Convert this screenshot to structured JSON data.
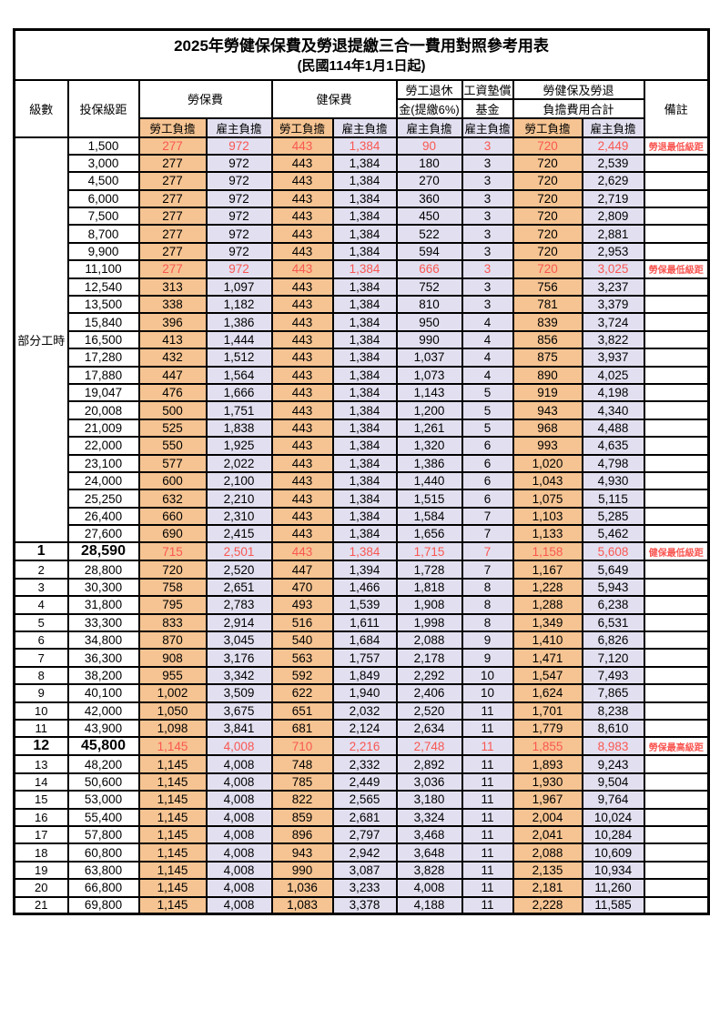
{
  "title": "2025年勞健保保費及勞退提繳三合一費用對照參考用表",
  "subtitle": "(民國114年1月1日起)",
  "header": {
    "level": "級數",
    "bracket": "投保級距",
    "labor_ins": "勞保費",
    "health_ins": "健保費",
    "pension_line1": "勞工退休",
    "pension_line2": "金(提繳6%)",
    "wage_fund_line1": "工資墊償",
    "wage_fund_line2": "基金",
    "total_line1": "勞健保及勞退",
    "total_line2": "負擔費用合計",
    "note": "備註",
    "employee": "勞工負擔",
    "employer": "雇主負擔"
  },
  "part_time_label": "部分工時",
  "colors": {
    "employee_bg": "#F6C492",
    "employer_bg": "#E2E0F0",
    "highlight_text": "#F95752",
    "border": "#000000"
  },
  "value_column_names": [
    "labor-employee",
    "labor-employer",
    "health-employee",
    "health-employer",
    "pension-employer",
    "wage-fund-employer",
    "total-employee",
    "total-employer"
  ],
  "rows": [
    {
      "level": "",
      "bracket": "1,500",
      "values": [
        "277",
        "972",
        "443",
        "1,384",
        "90",
        "3",
        "720",
        "2,449"
      ],
      "note": "勞退最低級距",
      "red": true,
      "big": false
    },
    {
      "level": "",
      "bracket": "3,000",
      "values": [
        "277",
        "972",
        "443",
        "1,384",
        "180",
        "3",
        "720",
        "2,539"
      ],
      "note": "",
      "red": false,
      "big": false
    },
    {
      "level": "",
      "bracket": "4,500",
      "values": [
        "277",
        "972",
        "443",
        "1,384",
        "270",
        "3",
        "720",
        "2,629"
      ],
      "note": "",
      "red": false,
      "big": false
    },
    {
      "level": "",
      "bracket": "6,000",
      "values": [
        "277",
        "972",
        "443",
        "1,384",
        "360",
        "3",
        "720",
        "2,719"
      ],
      "note": "",
      "red": false,
      "big": false
    },
    {
      "level": "",
      "bracket": "7,500",
      "values": [
        "277",
        "972",
        "443",
        "1,384",
        "450",
        "3",
        "720",
        "2,809"
      ],
      "note": "",
      "red": false,
      "big": false
    },
    {
      "level": "",
      "bracket": "8,700",
      "values": [
        "277",
        "972",
        "443",
        "1,384",
        "522",
        "3",
        "720",
        "2,881"
      ],
      "note": "",
      "red": false,
      "big": false
    },
    {
      "level": "",
      "bracket": "9,900",
      "values": [
        "277",
        "972",
        "443",
        "1,384",
        "594",
        "3",
        "720",
        "2,953"
      ],
      "note": "",
      "red": false,
      "big": false
    },
    {
      "level": "",
      "bracket": "11,100",
      "values": [
        "277",
        "972",
        "443",
        "1,384",
        "666",
        "3",
        "720",
        "3,025"
      ],
      "note": "勞保最低級距",
      "red": true,
      "big": false
    },
    {
      "level": "",
      "bracket": "12,540",
      "values": [
        "313",
        "1,097",
        "443",
        "1,384",
        "752",
        "3",
        "756",
        "3,237"
      ],
      "note": "",
      "red": false,
      "big": false
    },
    {
      "level": "",
      "bracket": "13,500",
      "values": [
        "338",
        "1,182",
        "443",
        "1,384",
        "810",
        "3",
        "781",
        "3,379"
      ],
      "note": "",
      "red": false,
      "big": false
    },
    {
      "level": "",
      "bracket": "15,840",
      "values": [
        "396",
        "1,386",
        "443",
        "1,384",
        "950",
        "4",
        "839",
        "3,724"
      ],
      "note": "",
      "red": false,
      "big": false
    },
    {
      "level": "",
      "bracket": "16,500",
      "values": [
        "413",
        "1,444",
        "443",
        "1,384",
        "990",
        "4",
        "856",
        "3,822"
      ],
      "note": "",
      "red": false,
      "big": false
    },
    {
      "level": "",
      "bracket": "17,280",
      "values": [
        "432",
        "1,512",
        "443",
        "1,384",
        "1,037",
        "4",
        "875",
        "3,937"
      ],
      "note": "",
      "red": false,
      "big": false
    },
    {
      "level": "",
      "bracket": "17,880",
      "values": [
        "447",
        "1,564",
        "443",
        "1,384",
        "1,073",
        "4",
        "890",
        "4,025"
      ],
      "note": "",
      "red": false,
      "big": false
    },
    {
      "level": "",
      "bracket": "19,047",
      "values": [
        "476",
        "1,666",
        "443",
        "1,384",
        "1,143",
        "5",
        "919",
        "4,198"
      ],
      "note": "",
      "red": false,
      "big": false
    },
    {
      "level": "",
      "bracket": "20,008",
      "values": [
        "500",
        "1,751",
        "443",
        "1,384",
        "1,200",
        "5",
        "943",
        "4,340"
      ],
      "note": "",
      "red": false,
      "big": false
    },
    {
      "level": "",
      "bracket": "21,009",
      "values": [
        "525",
        "1,838",
        "443",
        "1,384",
        "1,261",
        "5",
        "968",
        "4,488"
      ],
      "note": "",
      "red": false,
      "big": false
    },
    {
      "level": "",
      "bracket": "22,000",
      "values": [
        "550",
        "1,925",
        "443",
        "1,384",
        "1,320",
        "6",
        "993",
        "4,635"
      ],
      "note": "",
      "red": false,
      "big": false
    },
    {
      "level": "",
      "bracket": "23,100",
      "values": [
        "577",
        "2,022",
        "443",
        "1,384",
        "1,386",
        "6",
        "1,020",
        "4,798"
      ],
      "note": "",
      "red": false,
      "big": false
    },
    {
      "level": "",
      "bracket": "24,000",
      "values": [
        "600",
        "2,100",
        "443",
        "1,384",
        "1,440",
        "6",
        "1,043",
        "4,930"
      ],
      "note": "",
      "red": false,
      "big": false
    },
    {
      "level": "",
      "bracket": "25,250",
      "values": [
        "632",
        "2,210",
        "443",
        "1,384",
        "1,515",
        "6",
        "1,075",
        "5,115"
      ],
      "note": "",
      "red": false,
      "big": false
    },
    {
      "level": "",
      "bracket": "26,400",
      "values": [
        "660",
        "2,310",
        "443",
        "1,384",
        "1,584",
        "7",
        "1,103",
        "5,285"
      ],
      "note": "",
      "red": false,
      "big": false
    },
    {
      "level": "",
      "bracket": "27,600",
      "values": [
        "690",
        "2,415",
        "443",
        "1,384",
        "1,656",
        "7",
        "1,133",
        "5,462"
      ],
      "note": "",
      "red": false,
      "big": false
    },
    {
      "level": "1",
      "bracket": "28,590",
      "values": [
        "715",
        "2,501",
        "443",
        "1,384",
        "1,715",
        "7",
        "1,158",
        "5,608"
      ],
      "note": "健保最低級距",
      "red": true,
      "big": true
    },
    {
      "level": "2",
      "bracket": "28,800",
      "values": [
        "720",
        "2,520",
        "447",
        "1,394",
        "1,728",
        "7",
        "1,167",
        "5,649"
      ],
      "note": "",
      "red": false,
      "big": false
    },
    {
      "level": "3",
      "bracket": "30,300",
      "values": [
        "758",
        "2,651",
        "470",
        "1,466",
        "1,818",
        "8",
        "1,228",
        "5,943"
      ],
      "note": "",
      "red": false,
      "big": false
    },
    {
      "level": "4",
      "bracket": "31,800",
      "values": [
        "795",
        "2,783",
        "493",
        "1,539",
        "1,908",
        "8",
        "1,288",
        "6,238"
      ],
      "note": "",
      "red": false,
      "big": false
    },
    {
      "level": "5",
      "bracket": "33,300",
      "values": [
        "833",
        "2,914",
        "516",
        "1,611",
        "1,998",
        "8",
        "1,349",
        "6,531"
      ],
      "note": "",
      "red": false,
      "big": false
    },
    {
      "level": "6",
      "bracket": "34,800",
      "values": [
        "870",
        "3,045",
        "540",
        "1,684",
        "2,088",
        "9",
        "1,410",
        "6,826"
      ],
      "note": "",
      "red": false,
      "big": false
    },
    {
      "level": "7",
      "bracket": "36,300",
      "values": [
        "908",
        "3,176",
        "563",
        "1,757",
        "2,178",
        "9",
        "1,471",
        "7,120"
      ],
      "note": "",
      "red": false,
      "big": false
    },
    {
      "level": "8",
      "bracket": "38,200",
      "values": [
        "955",
        "3,342",
        "592",
        "1,849",
        "2,292",
        "10",
        "1,547",
        "7,493"
      ],
      "note": "",
      "red": false,
      "big": false
    },
    {
      "level": "9",
      "bracket": "40,100",
      "values": [
        "1,002",
        "3,509",
        "622",
        "1,940",
        "2,406",
        "10",
        "1,624",
        "7,865"
      ],
      "note": "",
      "red": false,
      "big": false
    },
    {
      "level": "10",
      "bracket": "42,000",
      "values": [
        "1,050",
        "3,675",
        "651",
        "2,032",
        "2,520",
        "11",
        "1,701",
        "8,238"
      ],
      "note": "",
      "red": false,
      "big": false
    },
    {
      "level": "11",
      "bracket": "43,900",
      "values": [
        "1,098",
        "3,841",
        "681",
        "2,124",
        "2,634",
        "11",
        "1,779",
        "8,610"
      ],
      "note": "",
      "red": false,
      "big": false
    },
    {
      "level": "12",
      "bracket": "45,800",
      "values": [
        "1,145",
        "4,008",
        "710",
        "2,216",
        "2,748",
        "11",
        "1,855",
        "8,983"
      ],
      "note": "勞保最高級距",
      "red": true,
      "big": true
    },
    {
      "level": "13",
      "bracket": "48,200",
      "values": [
        "1,145",
        "4,008",
        "748",
        "2,332",
        "2,892",
        "11",
        "1,893",
        "9,243"
      ],
      "note": "",
      "red": false,
      "big": false
    },
    {
      "level": "14",
      "bracket": "50,600",
      "values": [
        "1,145",
        "4,008",
        "785",
        "2,449",
        "3,036",
        "11",
        "1,930",
        "9,504"
      ],
      "note": "",
      "red": false,
      "big": false
    },
    {
      "level": "15",
      "bracket": "53,000",
      "values": [
        "1,145",
        "4,008",
        "822",
        "2,565",
        "3,180",
        "11",
        "1,967",
        "9,764"
      ],
      "note": "",
      "red": false,
      "big": false
    },
    {
      "level": "16",
      "bracket": "55,400",
      "values": [
        "1,145",
        "4,008",
        "859",
        "2,681",
        "3,324",
        "11",
        "2,004",
        "10,024"
      ],
      "note": "",
      "red": false,
      "big": false
    },
    {
      "level": "17",
      "bracket": "57,800",
      "values": [
        "1,145",
        "4,008",
        "896",
        "2,797",
        "3,468",
        "11",
        "2,041",
        "10,284"
      ],
      "note": "",
      "red": false,
      "big": false
    },
    {
      "level": "18",
      "bracket": "60,800",
      "values": [
        "1,145",
        "4,008",
        "943",
        "2,942",
        "3,648",
        "11",
        "2,088",
        "10,609"
      ],
      "note": "",
      "red": false,
      "big": false
    },
    {
      "level": "19",
      "bracket": "63,800",
      "values": [
        "1,145",
        "4,008",
        "990",
        "3,087",
        "3,828",
        "11",
        "2,135",
        "10,934"
      ],
      "note": "",
      "red": false,
      "big": false
    },
    {
      "level": "20",
      "bracket": "66,800",
      "values": [
        "1,145",
        "4,008",
        "1,036",
        "3,233",
        "4,008",
        "11",
        "2,181",
        "11,260"
      ],
      "note": "",
      "red": false,
      "big": false
    },
    {
      "level": "21",
      "bracket": "69,800",
      "values": [
        "1,145",
        "4,008",
        "1,083",
        "3,378",
        "4,188",
        "11",
        "2,228",
        "11,585"
      ],
      "note": "",
      "red": false,
      "big": false
    }
  ]
}
